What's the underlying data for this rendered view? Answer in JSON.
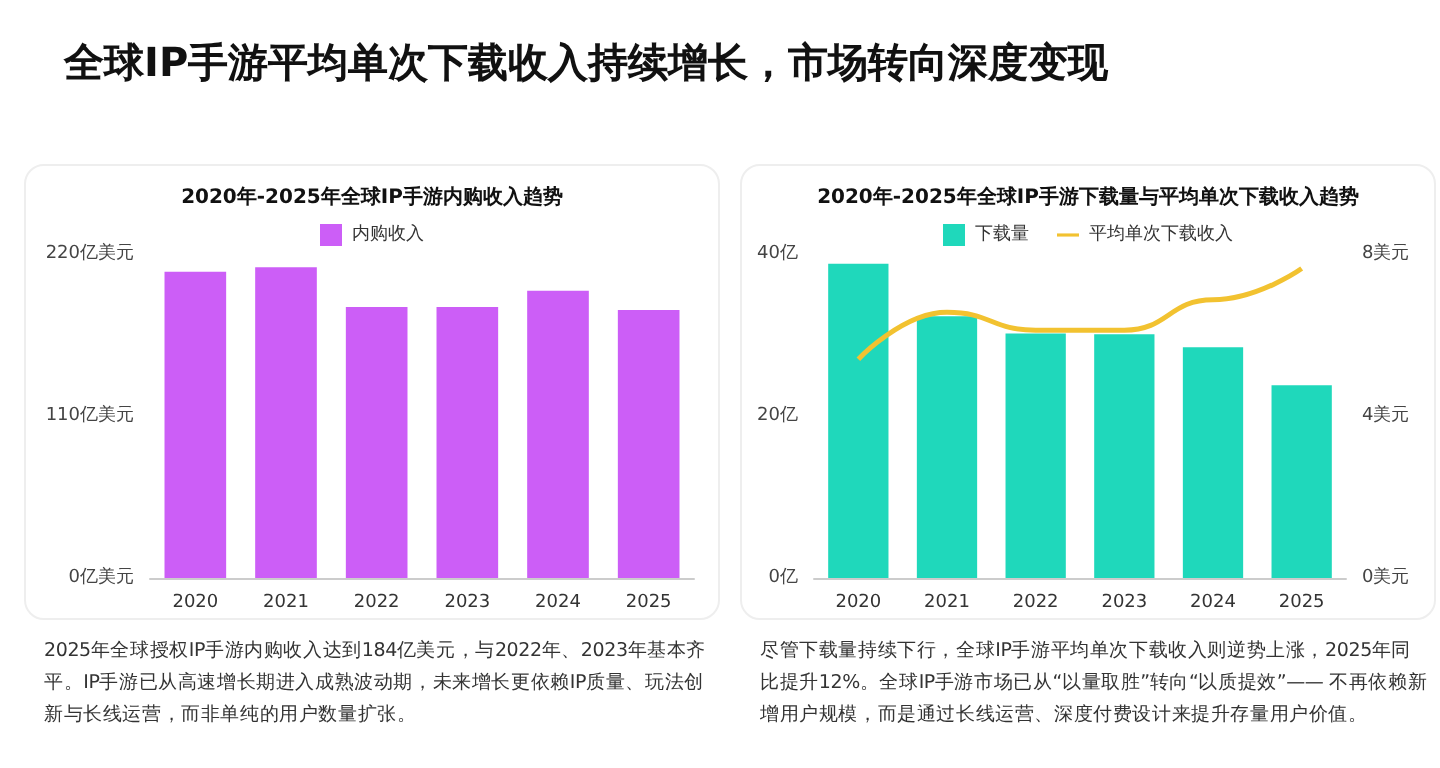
{
  "chart_data": [
    {
      "type": "bar",
      "title": "2020年-2025年全球IP手游内购收入趋势",
      "categories": [
        "2020",
        "2021",
        "2022",
        "2023",
        "2024",
        "2025"
      ],
      "series": [
        {
          "name": "内购收入",
          "color": "#cc5ef7",
          "values": [
            208,
            211,
            184,
            184,
            195,
            182
          ]
        }
      ],
      "ylim": [
        0,
        220
      ],
      "yticks": [
        {
          "value": 0,
          "label": "0亿美元"
        },
        {
          "value": 110,
          "label": "110亿美元"
        },
        {
          "value": 220,
          "label": "220亿美元"
        }
      ],
      "grid": false,
      "legend": "top",
      "annotations": [
        "全球IP手游平均单次下载收入持续增长，市场转向深度变现",
        "2025年全球授权IP手游内购收入达到184亿美元，与2022年、2023年基本齐平。IP手游已从高速增长期进入成熟波动期，未来增长更依赖IP质量、玩法创新与长线运营，而非单纯的用户数量扩张。"
      ]
    },
    {
      "type": "bar",
      "title": "2020年-2025年全球IP手游下载量与平均单次下载收入趋势",
      "categories": [
        "2020",
        "2021",
        "2022",
        "2023",
        "2024",
        "2025"
      ],
      "series": [
        {
          "name": "下载量",
          "color": "#1fd8bb",
          "values": [
            38.8,
            32.3,
            30.2,
            30.1,
            28.5,
            23.8
          ]
        },
        {
          "name": "平均单次下载收入",
          "type": "line",
          "axis": "y2",
          "color": "#f2c230",
          "values": [
            5.4,
            6.56,
            6.12,
            6.12,
            6.87,
            7.64
          ]
        }
      ],
      "ylim": [
        0,
        40
      ],
      "yticks": [
        {
          "value": 0,
          "label": "0亿"
        },
        {
          "value": 20,
          "label": "20亿"
        },
        {
          "value": 40,
          "label": "40亿"
        }
      ],
      "y2lim": [
        0,
        8
      ],
      "y2ticks": [
        {
          "value": 0,
          "label": "0美元"
        },
        {
          "value": 4,
          "label": "4美元"
        },
        {
          "value": 8,
          "label": "8美元"
        }
      ],
      "grid": false,
      "legend": "top",
      "marker": "none",
      "annotations": [
        "尽管下载量持续下行，全球IP手游平均单次下载收入则逆势上涨，2025年同比提升12%。全球IP手游市场已从“以量取胜”转向“以质提效”—— 不再依赖新增用户规模，而是通过长线运营、深度付费设计来提升存量用户价值。"
      ]
    }
  ]
}
